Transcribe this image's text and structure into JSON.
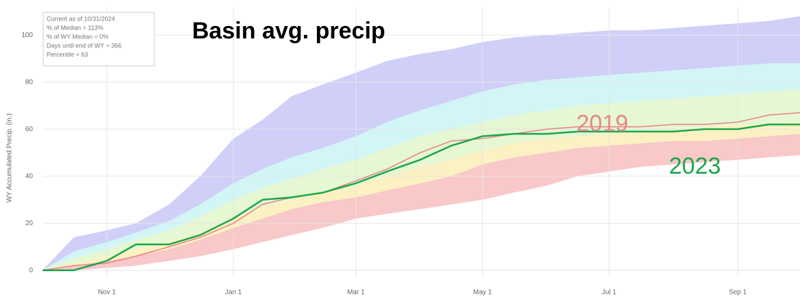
{
  "chart_data": {
    "type": "line",
    "title": "Basin avg. precip",
    "ylabel": "WY Accumulated Precip. (in.)",
    "info_box": [
      "Current as of 10/31/2024",
      "% of Median = 113%",
      "% of WY Median = 0%",
      "Days until end of WY = 366",
      "Percentile = 63"
    ],
    "annotations": [
      {
        "text": "2019",
        "color": "#e8868a"
      },
      {
        "text": "2023",
        "color": "#1aa64a"
      }
    ],
    "x": [
      0,
      15,
      31,
      45,
      61,
      76,
      92,
      106,
      120,
      135,
      151,
      166,
      182,
      197,
      212,
      227,
      243,
      258,
      273,
      288,
      304,
      319,
      335,
      350,
      365
    ],
    "xlim": [
      0,
      365
    ],
    "xticks": [
      {
        "value": 31,
        "label": "Nov 1"
      },
      {
        "value": 92,
        "label": "Jan 1"
      },
      {
        "value": 151,
        "label": "Mar 1"
      },
      {
        "value": 212,
        "label": "May 1"
      },
      {
        "value": 273,
        "label": "Jul 1"
      },
      {
        "value": 335,
        "label": "Sep 1"
      }
    ],
    "ylim": [
      -3,
      112
    ],
    "yticks": [
      0,
      20,
      40,
      60,
      80,
      100
    ],
    "grid": true,
    "bands": [
      {
        "color": "#f9c8c8",
        "lower": [
          0,
          0,
          1,
          2,
          4,
          6,
          9,
          12,
          15,
          18,
          22,
          24,
          26,
          28,
          30,
          33,
          36,
          40,
          42,
          44,
          45,
          46,
          47,
          48,
          49
        ],
        "upper": [
          0,
          2,
          4,
          6,
          9,
          13,
          18,
          22,
          26,
          29,
          31,
          34,
          37,
          40,
          45,
          48,
          50,
          52,
          53,
          54,
          55,
          55,
          56,
          57,
          58
        ]
      },
      {
        "color": "#fbf1c2",
        "lower": [
          0,
          2,
          4,
          6,
          9,
          13,
          18,
          22,
          26,
          29,
          31,
          34,
          37,
          40,
          45,
          48,
          50,
          52,
          53,
          54,
          55,
          55,
          56,
          57,
          58
        ],
        "upper": [
          0,
          3,
          6,
          9,
          12,
          16,
          22,
          27,
          30,
          33,
          36,
          40,
          44,
          47,
          51,
          54,
          56,
          57,
          58,
          59,
          60,
          61,
          62,
          62,
          63
        ]
      },
      {
        "color": "#e5f7d3",
        "lower": [
          0,
          3,
          6,
          9,
          12,
          16,
          22,
          27,
          30,
          33,
          36,
          40,
          44,
          47,
          51,
          54,
          56,
          57,
          58,
          59,
          60,
          61,
          62,
          62,
          63
        ],
        "upper": [
          0,
          5,
          9,
          13,
          17,
          23,
          30,
          35,
          39,
          43,
          47,
          52,
          57,
          60,
          63,
          66,
          68,
          70,
          71,
          72,
          73,
          74,
          75,
          76,
          77
        ]
      },
      {
        "color": "#d2f5f6",
        "lower": [
          0,
          5,
          9,
          13,
          17,
          23,
          30,
          35,
          39,
          43,
          47,
          52,
          57,
          60,
          63,
          66,
          68,
          70,
          71,
          72,
          73,
          74,
          75,
          76,
          77
        ],
        "upper": [
          0,
          8,
          12,
          16,
          21,
          28,
          37,
          43,
          48,
          52,
          57,
          63,
          68,
          72,
          76,
          79,
          81,
          82,
          83,
          84,
          85,
          86,
          87,
          88,
          88
        ]
      },
      {
        "color": "#cfcff8",
        "lower": [
          0,
          8,
          12,
          16,
          21,
          28,
          37,
          43,
          48,
          52,
          57,
          63,
          68,
          72,
          76,
          79,
          81,
          82,
          83,
          84,
          85,
          86,
          87,
          88,
          88
        ],
        "upper": [
          0,
          14,
          17,
          20,
          28,
          40,
          56,
          64,
          74,
          79,
          84,
          89,
          92,
          94,
          97,
          99,
          100,
          101,
          102,
          102,
          103,
          104,
          105,
          106,
          108
        ]
      }
    ],
    "series": [
      {
        "name": "2019",
        "color": "#e8868a",
        "values": [
          0,
          2,
          3,
          6,
          10,
          14,
          20,
          28,
          31,
          33,
          38,
          43,
          50,
          55,
          56,
          58,
          60,
          61,
          61,
          61,
          62,
          62,
          63,
          66,
          67
        ]
      },
      {
        "name": "2023",
        "color": "#1aa64a",
        "values": [
          0,
          0,
          4,
          11,
          11,
          15,
          22,
          30,
          31,
          33,
          37,
          42,
          47,
          53,
          57,
          58,
          58,
          59,
          59,
          59,
          59,
          60,
          60,
          62,
          62
        ]
      }
    ]
  }
}
